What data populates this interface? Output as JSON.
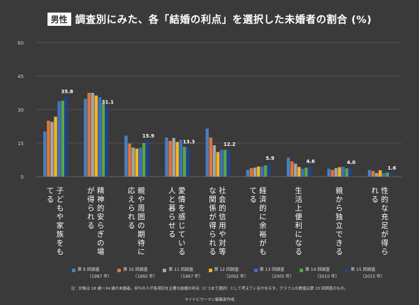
{
  "header": {
    "badge": "男性",
    "title": "調査別にみた、各「結婚の利点」を選択した未婚者の割合 (%)"
  },
  "chart_data": {
    "type": "bar",
    "title": "調査別にみた、各「結婚の利点」を選択した未婚者の割合 (%)",
    "ylabel": "%",
    "ylim": [
      0,
      60
    ],
    "yticks": [
      0,
      15,
      30,
      45,
      60
    ],
    "categories": [
      "子どもや家族をもてる",
      "精神的安らぎの場が得られる",
      "親や周囲の期待に応えられる",
      "愛情を感じている人と暮らせる",
      "社会的信用や対等な関係が得られる",
      "経済的に余裕がもてる",
      "生活上便利になる",
      "親から独立できる",
      "性的な充足が得られる"
    ],
    "series": [
      {
        "name": "第 9 回調査",
        "year": "（1987 年）",
        "color": "#4a7fc1",
        "values": [
          20.2,
          34.8,
          18.3,
          17.5,
          21.5,
          3.0,
          8.5,
          3.5,
          3.0
        ]
      },
      {
        "name": "第 10 回調査",
        "year": "（1992 年）",
        "color": "#e0763a",
        "values": [
          25.0,
          37.5,
          14.8,
          16.0,
          17.5,
          3.8,
          6.8,
          3.0,
          2.5
        ]
      },
      {
        "name": "第 11 回調査",
        "year": "（1997 年）",
        "color": "#a5a5a5",
        "values": [
          24.5,
          37.5,
          13.0,
          17.3,
          14.0,
          4.0,
          5.8,
          3.8,
          1.6
        ]
      },
      {
        "name": "第 12 回調査",
        "year": "（2002 年）",
        "color": "#f3b61f",
        "values": [
          26.8,
          36.3,
          12.5,
          15.5,
          11.0,
          4.5,
          4.3,
          4.2,
          2.8
        ]
      },
      {
        "name": "第 13 回調査",
        "year": "（2005 年）",
        "color": "#3d70c4",
        "values": [
          33.8,
          35.5,
          13.0,
          16.5,
          12.0,
          4.5,
          3.5,
          4.4,
          1.6
        ]
      },
      {
        "name": "第 14 回調査",
        "year": "（2010 年）",
        "color": "#5aa548",
        "values": [
          34.0,
          32.8,
          15.0,
          13.3,
          12.0,
          5.0,
          4.0,
          3.7,
          1.8
        ]
      },
      {
        "name": "第 15 回調査",
        "year": "（2015 年）",
        "color": "#21428f",
        "values": [
          35.8,
          31.1,
          15.9,
          13.3,
          12.2,
          5.9,
          4.6,
          4.0,
          1.6
        ]
      }
    ],
    "labels": [
      "35.8",
      "31.1",
      "15.9",
      "13.3",
      "12.2",
      "5.9",
      "4.6",
      "4.0",
      "1.6"
    ]
  },
  "footer": {
    "note": "注：対象は 18 歳～34 歳の未婚者。何％の人が各項目を主要な結婚の利点（2 つまで選択）として考えているかを示す。グラフ上の数値は第 15 回調査のもの。",
    "credit": "マイナビウーマン編集部作成"
  }
}
